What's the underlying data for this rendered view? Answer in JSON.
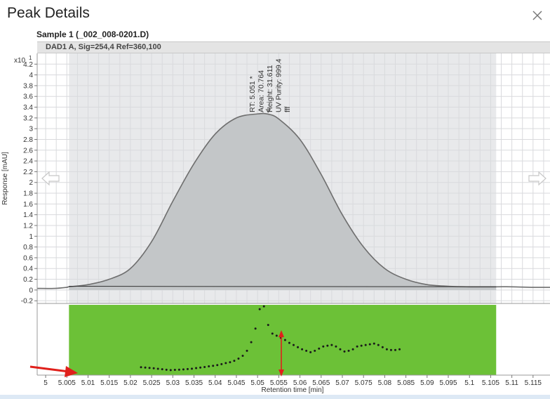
{
  "dialog": {
    "title": "Peak Details"
  },
  "sample": {
    "title": "Sample 1 (_002_008-0201.D)"
  },
  "signal": {
    "label": "DAD1 A, Sig=254,4 Ref=360,100"
  },
  "icons": {
    "close": "close-icon",
    "prev": "arrow-left-icon",
    "next": "arrow-right-icon",
    "marker": "red-arrow-icon"
  },
  "colors": {
    "peak_fill": "#c3c6c8",
    "peak_stroke": "#6e6e6e",
    "integration_region": "#e8e9eb",
    "purity_region": "#6cc137",
    "purity_dots": "#1a1a1a",
    "annotation_arrow": "#e0201b"
  },
  "chart_data": [
    {
      "type": "area",
      "title": "",
      "xlabel": "",
      "ylabel": "Response [mAU]",
      "y_multiplier": "x10",
      "y_multiplier_exp": "1",
      "y_ticks": [
        "-0.2",
        "0",
        "0.2",
        "0.4",
        "0.6",
        "0.8",
        "1",
        "1.2",
        "1.4",
        "1.6",
        "1.8",
        "2",
        "2.2",
        "2.4",
        "2.6",
        "2.8",
        "3",
        "3.2",
        "3.4",
        "3.6",
        "3.8",
        "4",
        "4.2"
      ],
      "ylim": [
        -0.25,
        4.4
      ],
      "xlim": [
        4.998,
        5.119
      ],
      "grid": true,
      "peak_window": [
        5.0055,
        5.1063
      ],
      "peak_annotation": [
        "RT: 5.051 *",
        "Area: 70.764",
        "Height: 31.611",
        "UV Purity: 999.4",
        "fff"
      ],
      "series": [
        {
          "x": [
            4.998,
            5.002,
            5.005,
            5.0055,
            5.01,
            5.015,
            5.02,
            5.025,
            5.03,
            5.035,
            5.04,
            5.045,
            5.05,
            5.0525,
            5.055,
            5.06,
            5.065,
            5.07,
            5.075,
            5.08,
            5.085,
            5.09,
            5.095,
            5.1,
            5.1063,
            5.11,
            5.115,
            5.119
          ],
          "y": [
            0.03,
            0.03,
            0.05,
            0.06,
            0.1,
            0.2,
            0.4,
            0.9,
            1.65,
            2.35,
            2.9,
            3.2,
            3.275,
            3.27,
            3.18,
            2.8,
            2.15,
            1.4,
            0.8,
            0.4,
            0.2,
            0.1,
            0.07,
            0.06,
            0.06,
            0.06,
            0.05,
            0.05
          ]
        }
      ]
    },
    {
      "type": "scatter",
      "title": "",
      "xlabel": "Retention time [min]",
      "x_ticks": [
        "5",
        "5.005",
        "5.01",
        "5.015",
        "5.02",
        "5.025",
        "5.03",
        "5.035",
        "5.04",
        "5.045",
        "5.05",
        "5.055",
        "5.06",
        "5.065",
        "5.07",
        "5.075",
        "5.08",
        "5.085",
        "5.09",
        "5.095",
        "5.1",
        "5.105",
        "5.11",
        "5.115"
      ],
      "xlim": [
        4.998,
        5.119
      ],
      "ylim": [
        0,
        1
      ],
      "region": [
        5.0055,
        5.1063
      ],
      "series": [
        {
          "x": [
            5.0225,
            5.0235,
            5.0245,
            5.0255,
            5.0265,
            5.0275,
            5.0285,
            5.0295,
            5.0305,
            5.0315,
            5.0325,
            5.0335,
            5.0345,
            5.0355,
            5.0365,
            5.0375,
            5.0385,
            5.0395,
            5.0405,
            5.0415,
            5.0425,
            5.0435,
            5.0445,
            5.0455,
            5.0465,
            5.0475,
            5.0485,
            5.0495,
            5.0505,
            5.0515,
            5.0525,
            5.0535,
            5.0545,
            5.0555,
            5.0565,
            5.0575,
            5.0585,
            5.0595,
            5.0605,
            5.0615,
            5.0625,
            5.0635,
            5.0645,
            5.0655,
            5.0665,
            5.0675,
            5.0685,
            5.0695,
            5.0705,
            5.0715,
            5.0725,
            5.0735,
            5.0745,
            5.0755,
            5.0765,
            5.0775,
            5.0785,
            5.0795,
            5.0805,
            5.0815,
            5.0825,
            5.0835
          ],
          "y": [
            0.11,
            0.105,
            0.1,
            0.095,
            0.088,
            0.082,
            0.075,
            0.07,
            0.073,
            0.076,
            0.08,
            0.085,
            0.09,
            0.098,
            0.105,
            0.113,
            0.122,
            0.13,
            0.14,
            0.153,
            0.168,
            0.18,
            0.2,
            0.23,
            0.27,
            0.34,
            0.46,
            0.65,
            0.92,
            0.96,
            0.7,
            0.58,
            0.55,
            0.52,
            0.49,
            0.45,
            0.42,
            0.39,
            0.36,
            0.34,
            0.32,
            0.34,
            0.37,
            0.4,
            0.41,
            0.42,
            0.4,
            0.36,
            0.33,
            0.34,
            0.36,
            0.4,
            0.41,
            0.42,
            0.43,
            0.44,
            0.42,
            0.39,
            0.36,
            0.35,
            0.35,
            0.36
          ]
        }
      ]
    }
  ]
}
